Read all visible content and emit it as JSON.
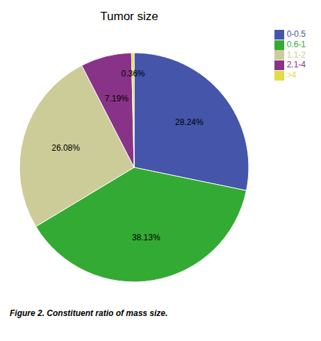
{
  "chart_data": {
    "type": "pie",
    "title": "Tumor size",
    "categories": [
      "0-0.5",
      "0.6-1",
      "1.1-2",
      "2.1-4",
      ">4"
    ],
    "values": [
      28.24,
      38.13,
      26.08,
      7.19,
      0.36
    ],
    "value_labels": [
      "28.24%",
      "38.13%",
      "26.08%",
      "7.19%",
      "0.36%"
    ],
    "colors": [
      "#4455aa",
      "#33aa33",
      "#cccc99",
      "#883388",
      "#dddd44"
    ],
    "data_labels": true,
    "legend": "upper right",
    "annotations": [
      "Figure 2. Constituent ratio of mass size."
    ]
  }
}
